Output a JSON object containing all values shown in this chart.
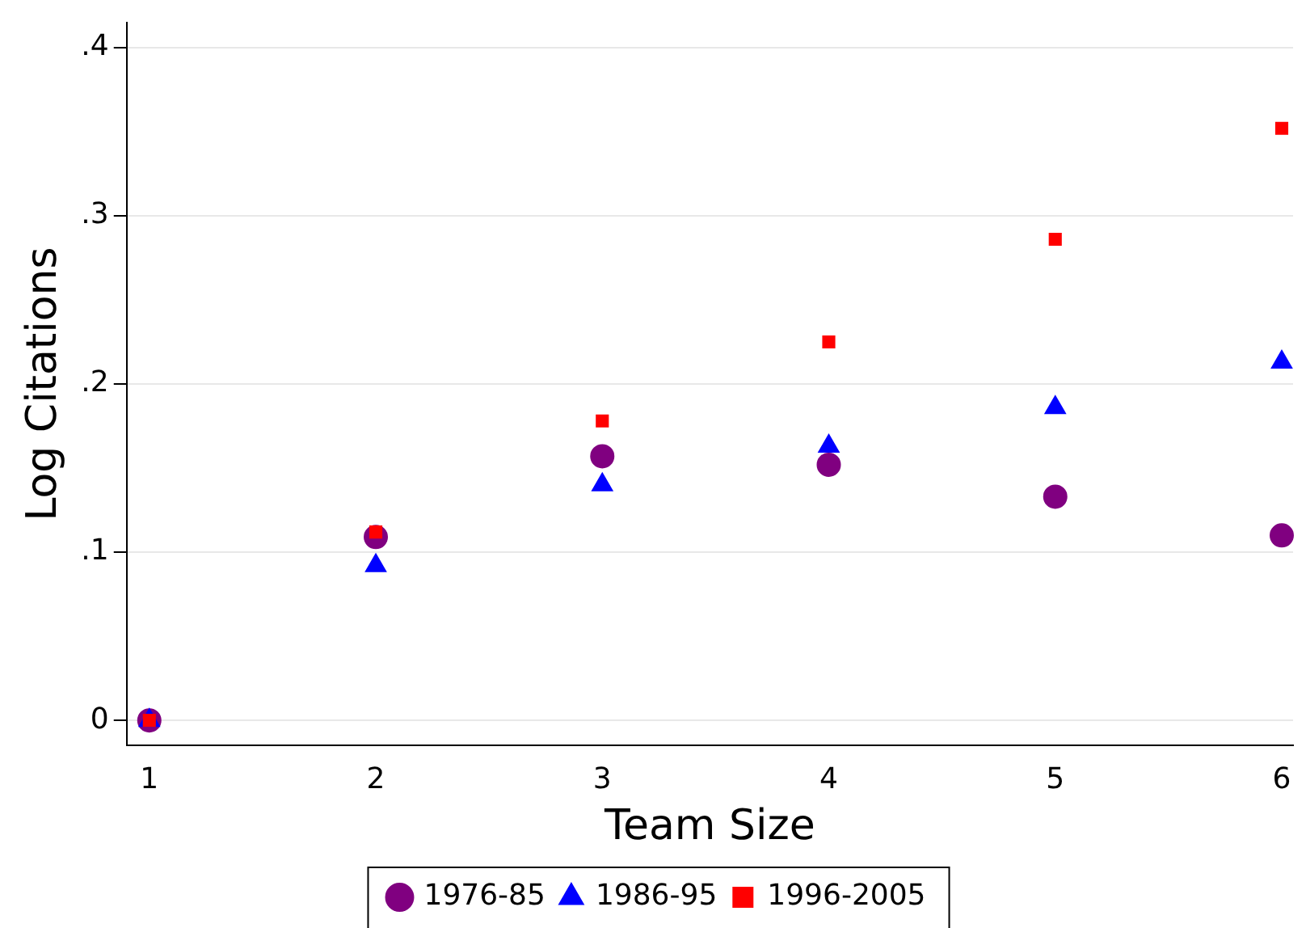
{
  "chart_data": {
    "type": "scatter",
    "xlabel": "Team Size",
    "ylabel": "Log Citations",
    "x": [
      1,
      2,
      3,
      4,
      5,
      6
    ],
    "series": [
      {
        "name": "1976-85",
        "color": "#800080",
        "marker": "circle",
        "values": [
          0,
          0.109,
          0.157,
          0.152,
          0.133,
          0.11
        ]
      },
      {
        "name": "1986-95",
        "color": "#0000ff",
        "marker": "triangle",
        "values": [
          0,
          0.092,
          0.14,
          0.163,
          0.186,
          0.213
        ]
      },
      {
        "name": "1996-2005",
        "color": "#ff0000",
        "marker": "square",
        "values": [
          0,
          0.112,
          0.178,
          0.225,
          0.286,
          0.352
        ]
      }
    ],
    "xlim": [
      0.9,
      6.05
    ],
    "xticks": [
      1,
      2,
      3,
      4,
      5,
      6
    ],
    "ylim": [
      -0.015,
      0.415
    ],
    "yticks": [
      0,
      {
        "value": 0.1,
        "label": ".1"
      },
      {
        "value": 0.2,
        "label": ".2"
      },
      {
        "value": 0.3,
        "label": ".3"
      },
      {
        "value": 0.4,
        "label": ".4"
      }
    ],
    "grid": "y",
    "legend": "bottom"
  }
}
